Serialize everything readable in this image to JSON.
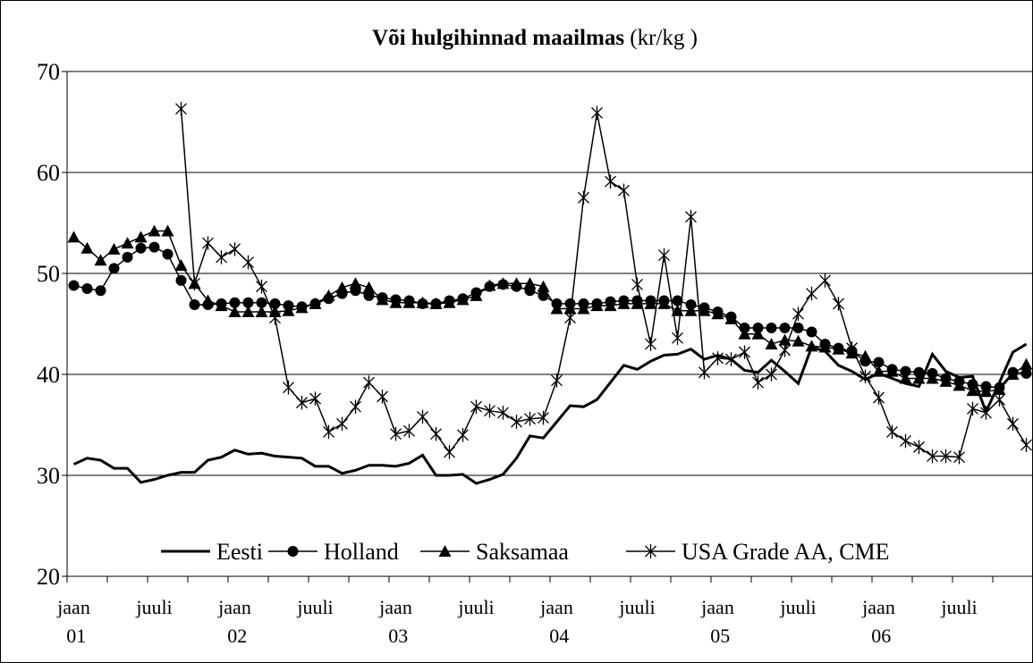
{
  "chart_data": {
    "type": "line",
    "title": "Või hulgihinnad maailmas",
    "subtitle": "(kr/kg )",
    "categories": [
      "jaan 01",
      null,
      null,
      null,
      null,
      null,
      "juuli",
      null,
      null,
      null,
      null,
      null,
      "jaan 02",
      null,
      null,
      null,
      null,
      null,
      "juuli",
      null,
      null,
      null,
      null,
      null,
      "jaan 03",
      null,
      null,
      null,
      null,
      null,
      "juuli",
      null,
      null,
      null,
      null,
      null,
      "jaan 04",
      null,
      null,
      null,
      null,
      null,
      "juuli",
      null,
      null,
      null,
      null,
      null,
      "jaan 05",
      null,
      null,
      null,
      null,
      null,
      "juuli",
      null,
      null,
      null,
      null,
      null,
      "jaan 06",
      null,
      null,
      null,
      null,
      null,
      "juuli",
      null,
      null,
      null,
      null,
      null
    ],
    "ylim": [
      20,
      70
    ],
    "yticks": [
      20,
      30,
      40,
      50,
      60,
      70
    ],
    "grid": true,
    "legend": "bottom",
    "series": [
      {
        "name": "Eesti",
        "color": "#000000",
        "marker": "none",
        "values": [
          31.1,
          31.7,
          31.5,
          30.7,
          30.7,
          29.3,
          29.6,
          30.0,
          30.3,
          30.3,
          31.5,
          31.8,
          32.5,
          32.1,
          32.2,
          31.9,
          31.8,
          31.7,
          30.9,
          30.9,
          30.2,
          30.5,
          31.0,
          31.0,
          30.9,
          31.2,
          32.0,
          30.0,
          30.0,
          30.1,
          29.2,
          29.6,
          30.1,
          31.7,
          33.9,
          33.7,
          35.3,
          36.9,
          36.8,
          37.5,
          39.2,
          40.9,
          40.5,
          41.3,
          41.9,
          42.0,
          42.5,
          41.5,
          41.9,
          41.5,
          40.4,
          40.2,
          41.4,
          40.3,
          39.1,
          42.7,
          42.3,
          40.9,
          40.3,
          39.5,
          40.1,
          39.6,
          39.1,
          38.8,
          42.0,
          40.3,
          39.7,
          39.8,
          36.3,
          39.2,
          42.2,
          43.0
        ]
      },
      {
        "name": "Holland",
        "color": "#000000",
        "marker": "circle",
        "values": [
          48.8,
          48.5,
          48.3,
          50.5,
          51.6,
          52.5,
          52.6,
          51.9,
          49.3,
          46.9,
          46.9,
          47.0,
          47.1,
          47.1,
          47.1,
          47.0,
          46.8,
          46.7,
          47.0,
          47.5,
          48.0,
          48.3,
          47.8,
          47.6,
          47.4,
          47.3,
          47.0,
          47.0,
          47.3,
          47.5,
          48.1,
          48.7,
          48.9,
          48.7,
          48.3,
          47.8,
          47.0,
          47.0,
          47.0,
          47.0,
          47.2,
          47.3,
          47.3,
          47.3,
          47.3,
          47.3,
          46.9,
          46.6,
          46.2,
          45.7,
          44.6,
          44.6,
          44.6,
          44.6,
          44.6,
          44.2,
          43.0,
          42.6,
          42.3,
          41.3,
          41.2,
          40.5,
          40.3,
          40.2,
          40.1,
          39.6,
          39.3,
          39.0,
          38.8,
          38.7,
          40.2,
          40.1
        ]
      },
      {
        "name": "Saksamaa",
        "color": "#000000",
        "marker": "triangle",
        "values": [
          53.6,
          52.5,
          51.3,
          52.4,
          53.0,
          53.6,
          54.2,
          54.2,
          50.8,
          49.0,
          47.3,
          46.8,
          46.2,
          46.2,
          46.2,
          46.2,
          46.3,
          46.6,
          47.0,
          47.8,
          48.6,
          49.0,
          48.6,
          47.4,
          47.1,
          47.1,
          47.1,
          47.0,
          47.1,
          47.4,
          47.8,
          48.8,
          49.0,
          49.0,
          49.0,
          48.7,
          46.5,
          46.5,
          46.5,
          46.8,
          46.8,
          47.0,
          47.0,
          47.0,
          47.0,
          46.3,
          46.3,
          46.3,
          46.0,
          45.5,
          44.0,
          44.0,
          43.0,
          43.4,
          43.3,
          42.8,
          42.7,
          42.5,
          42.1,
          41.8,
          40.3,
          40.3,
          39.6,
          39.6,
          39.6,
          39.3,
          38.9,
          38.4,
          38.3,
          38.5,
          40.0,
          41.0
        ]
      },
      {
        "name": "USA Grade AA, CME",
        "color": "#000000",
        "marker": "star",
        "values": [
          null,
          null,
          null,
          null,
          null,
          null,
          null,
          null,
          66.3,
          49.0,
          53.0,
          51.6,
          52.4,
          51.1,
          48.7,
          45.6,
          38.7,
          37.2,
          37.6,
          34.3,
          35.1,
          36.8,
          39.2,
          37.8,
          34.1,
          34.4,
          35.8,
          34.1,
          32.3,
          34.0,
          36.8,
          36.4,
          36.2,
          35.3,
          35.6,
          35.7,
          39.4,
          45.6,
          57.5,
          65.9,
          59.1,
          58.2,
          48.9,
          43.0,
          51.8,
          43.6,
          55.6,
          40.2,
          41.6,
          41.5,
          42.2,
          39.2,
          40.0,
          42.4,
          46.0,
          48.0,
          49.3,
          47.0,
          42.6,
          39.8,
          37.7,
          34.3,
          33.4,
          32.8,
          31.9,
          31.9,
          31.8,
          36.6,
          36.2,
          37.5,
          35.1,
          33.0
        ]
      }
    ]
  }
}
